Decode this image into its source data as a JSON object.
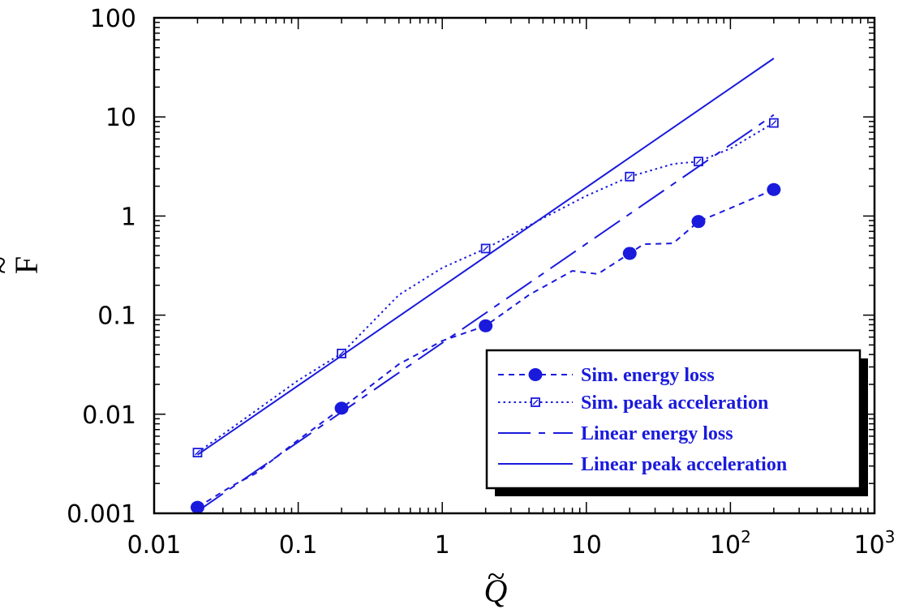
{
  "chart_data": {
    "type": "line",
    "xscale": "log",
    "yscale": "log",
    "xlim": [
      0.01,
      1000
    ],
    "ylim": [
      0.001,
      100
    ],
    "xlabel": "Q",
    "ylabel": "F",
    "x_ticks": [
      {
        "value": 0.01,
        "label": "0.01"
      },
      {
        "value": 0.1,
        "label": "0.1"
      },
      {
        "value": 1,
        "label": "1"
      },
      {
        "value": 10,
        "label": "10"
      },
      {
        "value": 100,
        "label": "10",
        "sup": "2"
      },
      {
        "value": 1000,
        "label": "10",
        "sup": "3"
      }
    ],
    "y_ticks": [
      {
        "value": 0.001,
        "label": "0.001"
      },
      {
        "value": 0.01,
        "label": "0.01"
      },
      {
        "value": 0.1,
        "label": "0.1"
      },
      {
        "value": 1,
        "label": "1"
      },
      {
        "value": 10,
        "label": "10"
      },
      {
        "value": 100,
        "label": "100"
      }
    ],
    "grid": false,
    "legend_position": "bottom-right",
    "color": "#1a1adc",
    "series": [
      {
        "name": "Sim. energy loss",
        "style": "short-dash",
        "marker": "filled-circle",
        "x": [
          0.02,
          0.2,
          2,
          20,
          60,
          200
        ],
        "y": [
          0.00115,
          0.0115,
          0.078,
          0.42,
          0.88,
          1.85
        ],
        "curve_x": [
          0.02,
          0.035,
          0.05,
          0.1,
          0.2,
          0.5,
          1,
          2,
          4,
          8,
          12,
          20,
          25,
          40,
          60,
          100,
          200
        ],
        "curve_y": [
          0.00115,
          0.0019,
          0.0025,
          0.0055,
          0.0115,
          0.032,
          0.055,
          0.078,
          0.16,
          0.28,
          0.26,
          0.42,
          0.52,
          0.53,
          0.88,
          1.2,
          1.85
        ]
      },
      {
        "name": "Sim. peak acceleration",
        "style": "dotted",
        "marker": "open-square",
        "x": [
          0.02,
          0.2,
          2,
          20,
          60,
          200
        ],
        "y": [
          0.0041,
          0.041,
          0.47,
          2.5,
          3.55,
          8.7
        ],
        "curve_x": [
          0.02,
          0.1,
          0.2,
          0.5,
          1,
          2,
          5,
          10,
          20,
          40,
          60,
          100,
          200
        ],
        "curve_y": [
          0.0041,
          0.022,
          0.041,
          0.16,
          0.3,
          0.47,
          0.95,
          1.6,
          2.5,
          3.35,
          3.55,
          4.8,
          8.7
        ]
      },
      {
        "name": "Linear energy loss",
        "style": "long-dash",
        "marker": "none",
        "x": [
          0.02,
          200
        ],
        "y": [
          0.00105,
          10.5
        ]
      },
      {
        "name": "Linear peak acceleration",
        "style": "solid",
        "marker": "none",
        "x": [
          0.02,
          200
        ],
        "y": [
          0.0039,
          39
        ]
      }
    ]
  }
}
